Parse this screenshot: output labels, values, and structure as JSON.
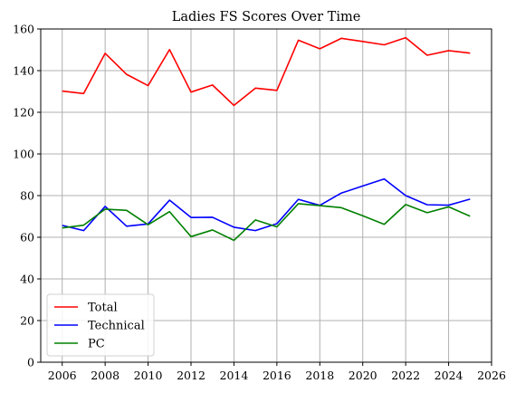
{
  "chart_data": {
    "type": "line",
    "title": "Ladies FS Scores Over Time",
    "xlabel": "",
    "ylabel": "",
    "xlim": [
      2005,
      2026
    ],
    "ylim": [
      0,
      160
    ],
    "xticks": [
      2006,
      2008,
      2010,
      2012,
      2014,
      2016,
      2018,
      2020,
      2022,
      2024,
      2026
    ],
    "yticks": [
      0,
      20,
      40,
      60,
      80,
      100,
      120,
      140,
      160
    ],
    "grid": true,
    "legend_position": "lower-left",
    "x": [
      2006,
      2007,
      2008,
      2009,
      2010,
      2011,
      2012,
      2013,
      2014,
      2015,
      2016,
      2017,
      2018,
      2019,
      2020,
      2021,
      2022,
      2023,
      2024,
      2025
    ],
    "series": [
      {
        "name": "Total",
        "color": "#ff0000",
        "values": [
          130.2,
          129.0,
          148.3,
          138.2,
          132.8,
          150.1,
          129.7,
          133.1,
          123.3,
          131.6,
          130.5,
          154.6,
          150.5,
          155.5,
          154.0,
          152.4,
          155.8,
          147.4,
          149.6,
          148.4
        ]
      },
      {
        "name": "Technical",
        "color": "#0000ff",
        "values": [
          65.7,
          63.2,
          74.8,
          65.3,
          66.4,
          77.8,
          69.5,
          69.6,
          64.8,
          63.2,
          66.5,
          78.2,
          75.3,
          81.2,
          84.6,
          88.0,
          80.0,
          75.6,
          75.4,
          78.3
        ]
      },
      {
        "name": "PC",
        "color": "#008000",
        "values": [
          64.5,
          65.8,
          73.5,
          72.9,
          66.0,
          72.3,
          60.3,
          63.5,
          58.5,
          68.3,
          65.0,
          76.1,
          75.2,
          74.2,
          70.3,
          66.2,
          75.7,
          71.8,
          74.6,
          70.1
        ]
      }
    ]
  }
}
